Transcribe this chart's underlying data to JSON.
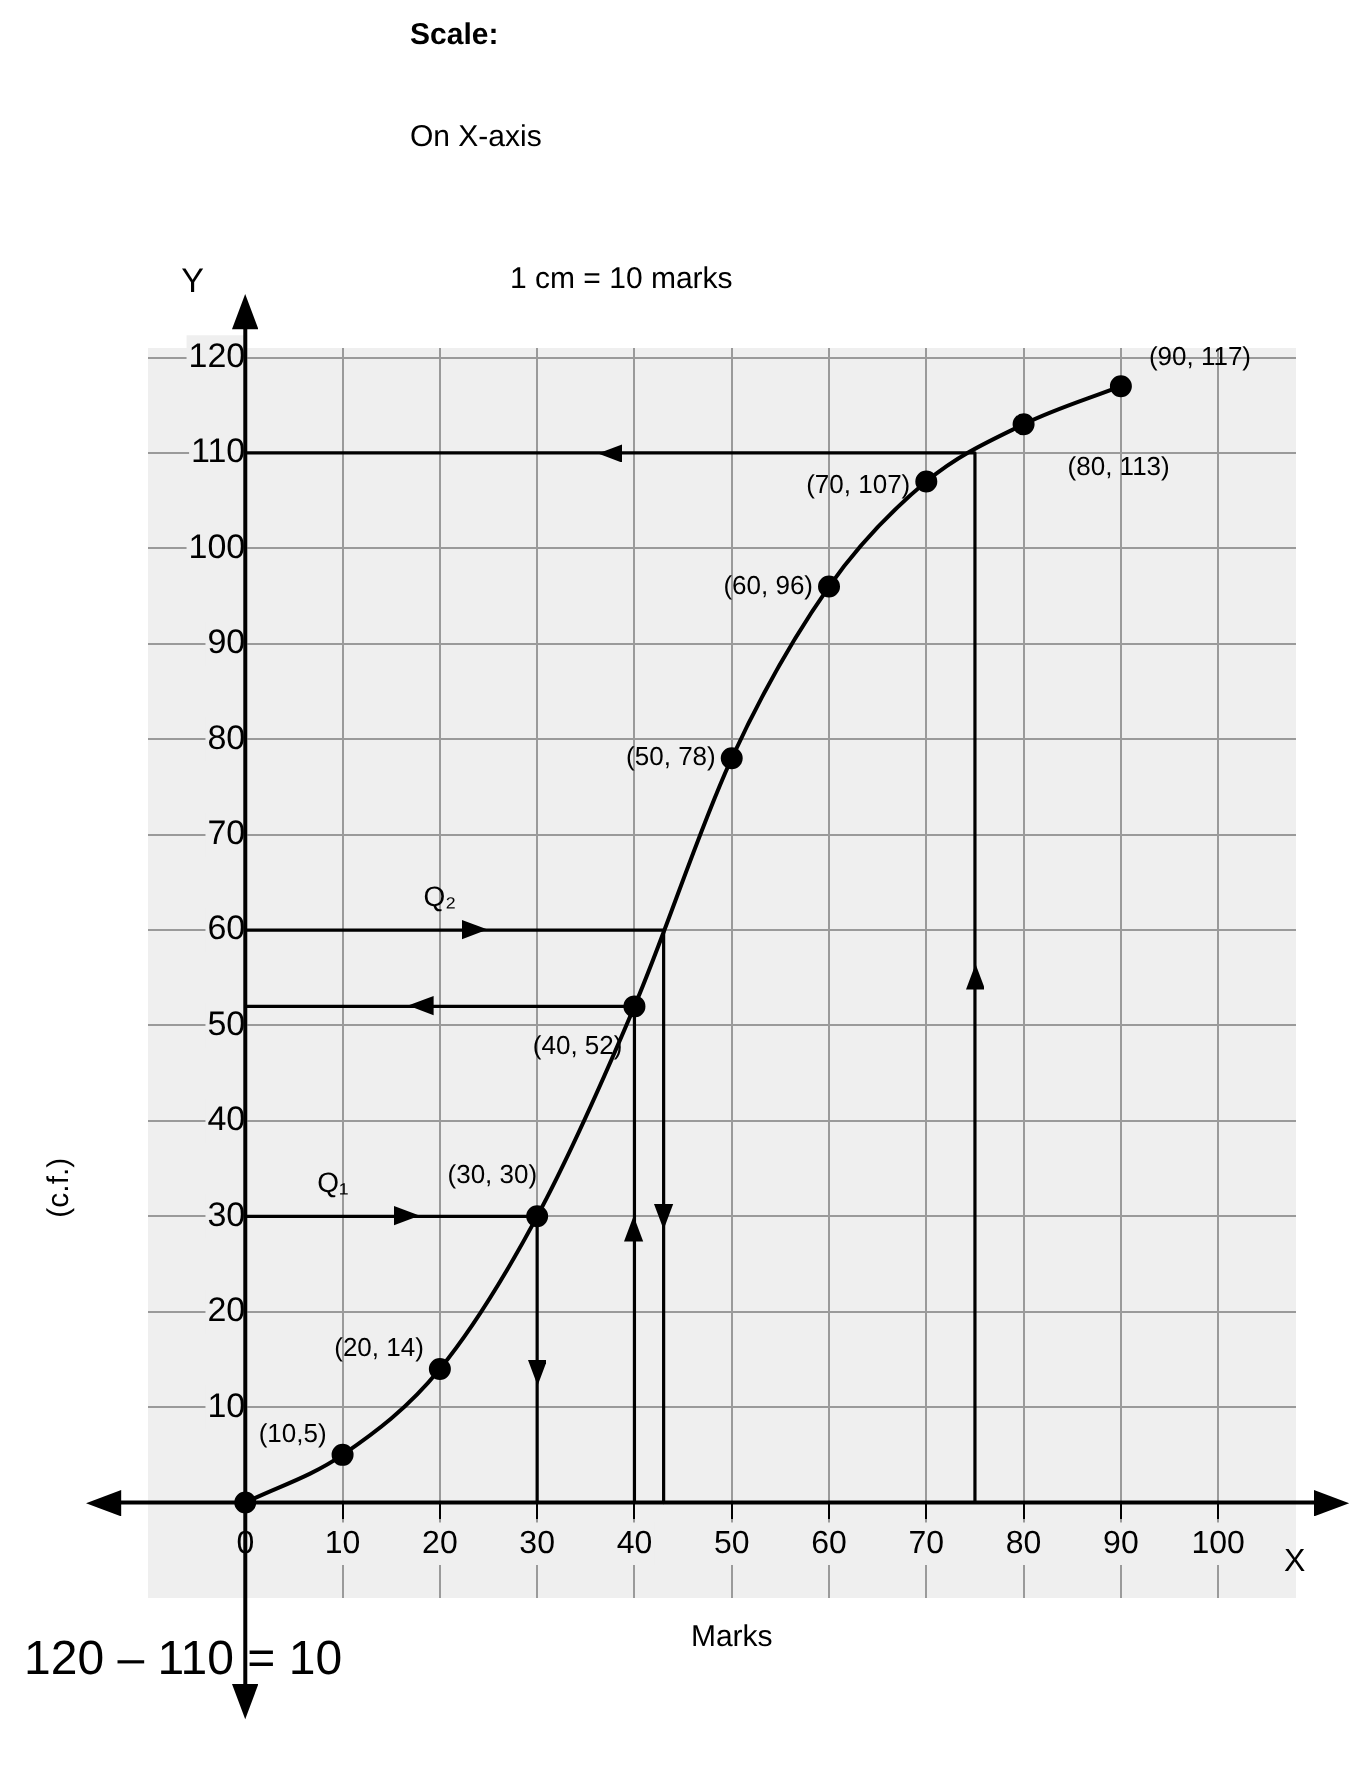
{
  "chart_data": {
    "type": "line",
    "title": "Scale:",
    "subtitle": "On X-axis",
    "xlabel": "Marks",
    "ylabel": "(c.f.)",
    "annotations": [
      "1 cm = 10 marks",
      "Y",
      "X",
      "120 – 110 = 10",
      {
        "text": "Q₁",
        "x": 9,
        "y": 30
      },
      {
        "text": "Q₂",
        "x": 20,
        "y": 60
      },
      {
        "text": "(10,5)",
        "x": 10,
        "y": 5
      },
      {
        "text": "(20, 14)",
        "x": 20,
        "y": 14
      },
      {
        "text": "(30, 30)",
        "x": 30,
        "y": 30
      },
      {
        "text": "(40, 52)",
        "x": 40,
        "y": 52
      },
      {
        "text": "(50, 78)",
        "x": 50,
        "y": 78
      },
      {
        "text": "(60, 96)",
        "x": 60,
        "y": 96
      },
      {
        "text": "(70, 107)",
        "x": 70,
        "y": 107
      },
      {
        "text": "(80, 113)",
        "x": 80,
        "y": 113
      },
      {
        "text": "(90, 117)",
        "x": 90,
        "y": 117
      }
    ],
    "xlim": [
      -10,
      108
    ],
    "ylim": [
      -10,
      121
    ],
    "xticks": [
      0,
      10,
      20,
      30,
      40,
      50,
      60,
      70,
      80,
      90,
      100
    ],
    "yticks": [
      10,
      20,
      30,
      40,
      50,
      60,
      70,
      80,
      90,
      100,
      110,
      120
    ],
    "grid": true,
    "marker": "circle",
    "series": [
      {
        "color": "#000000",
        "x": [
          0,
          10,
          20,
          30,
          40,
          50,
          60,
          70,
          80,
          90
        ],
        "values": [
          0,
          5,
          14,
          30,
          52,
          78,
          96,
          107,
          113,
          117
        ]
      },
      {
        "type": "line",
        "marker": "none",
        "color": "#000000",
        "x": [
          0,
          30,
          30
        ],
        "values": [
          30,
          30,
          0
        ]
      },
      {
        "type": "line",
        "marker": "none",
        "color": "#000000",
        "x": [
          0,
          43,
          43
        ],
        "values": [
          60,
          60,
          0
        ]
      },
      {
        "type": "line",
        "marker": "none",
        "color": "#000000",
        "x": [
          40,
          40,
          0
        ],
        "values": [
          0,
          52,
          52
        ]
      },
      {
        "type": "line",
        "marker": "none",
        "color": "#000000",
        "x": [
          75,
          75,
          0
        ],
        "values": [
          0,
          110,
          110
        ]
      }
    ]
  }
}
